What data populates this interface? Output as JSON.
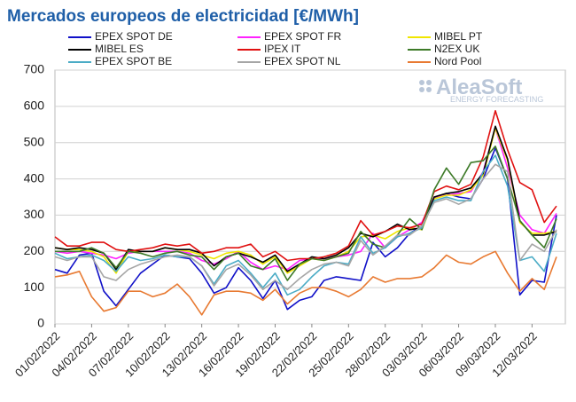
{
  "chart_data": {
    "type": "line",
    "title": "Mercados europeos de electricidad [€/MWh]",
    "watermark": {
      "brand": "AleaSoft",
      "tagline": "ENERGY FORECASTING"
    },
    "categories": [
      "01/02/2022",
      null,
      null,
      "04/02/2022",
      null,
      null,
      "07/02/2022",
      null,
      null,
      "10/02/2022",
      null,
      null,
      "13/02/2022",
      null,
      null,
      "16/02/2022",
      null,
      null,
      "19/02/2022",
      null,
      null,
      "22/02/2022",
      null,
      null,
      "25/02/2022",
      null,
      null,
      "28/02/2022",
      null,
      null,
      "03/03/2022",
      null,
      null,
      "06/03/2022",
      null,
      null,
      "09/03/2022",
      null,
      null,
      "12/03/2022",
      null,
      null
    ],
    "ylim": [
      0,
      700
    ],
    "yticks": [
      0,
      100,
      200,
      300,
      400,
      500,
      600,
      700
    ],
    "grid": true,
    "series": [
      {
        "name": "EPEX SPOT DE",
        "color": "#1010c8",
        "values": [
          150,
          140,
          190,
          195,
          90,
          50,
          95,
          140,
          165,
          190,
          185,
          180,
          140,
          85,
          100,
          155,
          120,
          70,
          120,
          40,
          65,
          75,
          120,
          130,
          125,
          120,
          225,
          185,
          210,
          250,
          270,
          345,
          360,
          350,
          345,
          400,
          485,
          400,
          80,
          120,
          115,
          300
        ]
      },
      {
        "name": "EPEX SPOT FR",
        "color": "#ff22ff",
        "values": [
          200,
          195,
          200,
          195,
          190,
          180,
          195,
          200,
          200,
          200,
          200,
          195,
          175,
          165,
          180,
          200,
          170,
          150,
          160,
          150,
          175,
          180,
          180,
          185,
          190,
          200,
          250,
          210,
          240,
          260,
          280,
          350,
          355,
          360,
          365,
          420,
          540,
          430,
          300,
          260,
          250,
          305
        ]
      },
      {
        "name": "MIBEL PT",
        "color": "#f0e600",
        "values": [
          210,
          205,
          205,
          200,
          185,
          140,
          200,
          200,
          200,
          210,
          205,
          200,
          190,
          180,
          195,
          200,
          190,
          165,
          185,
          140,
          160,
          180,
          175,
          185,
          200,
          240,
          245,
          235,
          255,
          265,
          260,
          345,
          355,
          355,
          370,
          410,
          540,
          450,
          280,
          250,
          250,
          255
        ]
      },
      {
        "name": "MIBEL ES",
        "color": "#000000",
        "values": [
          210,
          205,
          210,
          205,
          195,
          150,
          205,
          200,
          200,
          210,
          205,
          205,
          195,
          160,
          185,
          195,
          185,
          170,
          190,
          145,
          165,
          185,
          180,
          190,
          210,
          250,
          240,
          255,
          275,
          260,
          265,
          350,
          360,
          365,
          375,
          415,
          545,
          455,
          285,
          245,
          245,
          255
        ]
      },
      {
        "name": "IPEX IT",
        "color": "#e01010",
        "values": [
          240,
          215,
          215,
          225,
          225,
          205,
          200,
          205,
          210,
          220,
          215,
          220,
          195,
          200,
          210,
          210,
          220,
          185,
          200,
          175,
          180,
          180,
          185,
          195,
          215,
          285,
          245,
          255,
          270,
          265,
          275,
          365,
          380,
          370,
          385,
          460,
          588,
          480,
          390,
          370,
          280,
          325
        ]
      },
      {
        "name": "N2EX UK",
        "color": "#3d7a28",
        "values": [
          200,
          200,
          200,
          210,
          195,
          155,
          200,
          195,
          185,
          195,
          200,
          190,
          185,
          150,
          185,
          195,
          160,
          150,
          180,
          120,
          165,
          180,
          175,
          185,
          195,
          255,
          220,
          210,
          245,
          290,
          260,
          370,
          430,
          385,
          445,
          450,
          490,
          400,
          285,
          245,
          210,
          290
        ]
      },
      {
        "name": "EPEX SPOT BE",
        "color": "#4bacc6",
        "values": [
          195,
          180,
          185,
          190,
          175,
          145,
          185,
          175,
          180,
          190,
          185,
          185,
          160,
          110,
          160,
          175,
          140,
          100,
          140,
          80,
          95,
          130,
          160,
          170,
          165,
          240,
          195,
          210,
          240,
          250,
          265,
          340,
          350,
          340,
          340,
          420,
          465,
          380,
          175,
          185,
          145,
          250
        ]
      },
      {
        "name": "EPEX SPOT NL",
        "color": "#a6a6a6",
        "values": [
          185,
          175,
          185,
          185,
          130,
          120,
          150,
          165,
          175,
          185,
          190,
          185,
          160,
          105,
          150,
          165,
          135,
          95,
          120,
          95,
          125,
          150,
          165,
          170,
          160,
          230,
          190,
          215,
          245,
          245,
          270,
          335,
          345,
          330,
          345,
          400,
          440,
          420,
          175,
          220,
          200,
          260
        ]
      },
      {
        "name": "Nord Pool",
        "color": "#e87a32",
        "values": [
          130,
          135,
          145,
          75,
          35,
          45,
          90,
          90,
          75,
          85,
          110,
          75,
          25,
          80,
          90,
          90,
          85,
          65,
          95,
          55,
          85,
          100,
          100,
          90,
          75,
          95,
          130,
          115,
          125,
          125,
          130,
          155,
          190,
          170,
          165,
          185,
          200,
          140,
          90,
          125,
          95,
          185
        ]
      }
    ]
  }
}
